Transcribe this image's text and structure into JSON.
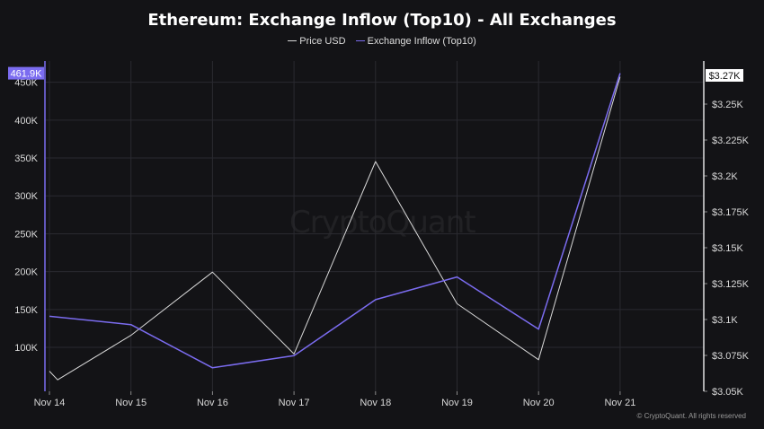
{
  "colors": {
    "background": "#131316",
    "price": "#d9d9d9",
    "inflow": "#7b6cf0",
    "grid": "#2a2a30",
    "axis": "#e0e0e0"
  },
  "watermark": "CryptoQuant",
  "footer": "© CryptoQuant. All rights reserved",
  "chart_data": {
    "type": "line",
    "title": "Ethereum: Exchange Inflow (Top10) - All Exchanges",
    "legend_position": "top-center",
    "grid": true,
    "categories": [
      "Nov 14",
      "Nov 15",
      "Nov 16",
      "Nov 17",
      "Nov 18",
      "Nov 19",
      "Nov 20",
      "Nov 21"
    ],
    "left_axis": {
      "ylim": [
        42000,
        478000
      ],
      "ticks": [
        100000,
        150000,
        200000,
        250000,
        300000,
        350000,
        400000,
        450000
      ],
      "tick_labels": [
        "100K",
        "150K",
        "200K",
        "250K",
        "300K",
        "350K",
        "400K",
        "450K"
      ],
      "current_tag": "461.9K",
      "current_value": 461900
    },
    "right_axis": {
      "ylim": [
        3050,
        3280
      ],
      "ticks": [
        3050,
        3075,
        3100,
        3125,
        3150,
        3175,
        3200,
        3225,
        3250
      ],
      "tick_labels": [
        "$3.05K",
        "$3.075K",
        "$3.1K",
        "$3.125K",
        "$3.15K",
        "$3.175K",
        "$3.2K",
        "$3.225K",
        "$3.25K"
      ],
      "current_tag": "$3.27K",
      "current_value": 3270
    },
    "series": [
      {
        "name": "Price USD",
        "axis": "right",
        "x": [
          0,
          0.1,
          1,
          2,
          3,
          4,
          5,
          6,
          7
        ],
        "values": [
          3064,
          3058,
          3089,
          3133,
          3076,
          3210,
          3111,
          3072,
          3269
        ]
      },
      {
        "name": "Exchange Inflow (Top10)",
        "axis": "left",
        "x": [
          0,
          1,
          2,
          3,
          4,
          5,
          6,
          7
        ],
        "values": [
          141000,
          130000,
          73000,
          89000,
          163000,
          193000,
          124000,
          461900
        ]
      }
    ]
  }
}
